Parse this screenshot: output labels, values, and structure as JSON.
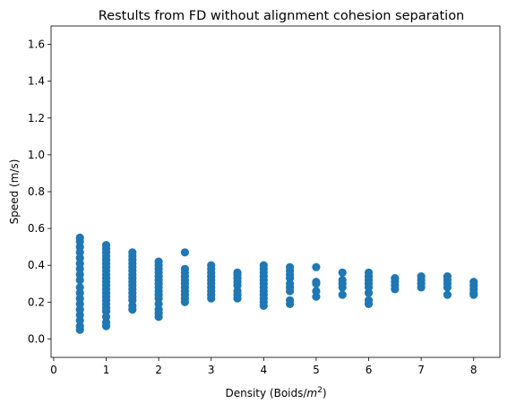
{
  "chart_data": {
    "type": "scatter",
    "title": "Restults from FD without alignment cohesion separation",
    "xlabel": "Density (Boids/m²)",
    "xlabel_main": "Density (Boids/",
    "xlabel_unit": "m",
    "xlabel_exp": "2",
    "xlabel_close": ")",
    "ylabel": "Speed (m/s)",
    "xlim": [
      -0.05,
      8.5
    ],
    "ylim": [
      -0.1,
      1.7
    ],
    "xticks": [
      0,
      1,
      2,
      3,
      4,
      5,
      6,
      7,
      8
    ],
    "yticks": [
      0.0,
      0.2,
      0.4,
      0.6,
      0.8,
      1.0,
      1.2,
      1.4,
      1.6
    ],
    "grid": false,
    "marker_color": "#1f77b4",
    "series": [
      {
        "points": [
          [
            0.5,
            0.05
          ],
          [
            0.5,
            0.07
          ],
          [
            0.5,
            0.1
          ],
          [
            0.5,
            0.13
          ],
          [
            0.5,
            0.16
          ],
          [
            0.5,
            0.19
          ],
          [
            0.5,
            0.22
          ],
          [
            0.5,
            0.25
          ],
          [
            0.5,
            0.28
          ],
          [
            0.5,
            0.32
          ],
          [
            0.5,
            0.35
          ],
          [
            0.5,
            0.38
          ],
          [
            0.5,
            0.41
          ],
          [
            0.5,
            0.44
          ],
          [
            0.5,
            0.47
          ],
          [
            0.5,
            0.5
          ],
          [
            0.5,
            0.53
          ],
          [
            0.5,
            0.55
          ],
          [
            1.0,
            0.07
          ],
          [
            1.0,
            0.09
          ],
          [
            1.0,
            0.12
          ],
          [
            1.0,
            0.15
          ],
          [
            1.0,
            0.17
          ],
          [
            1.0,
            0.19
          ],
          [
            1.0,
            0.21
          ],
          [
            1.0,
            0.23
          ],
          [
            1.0,
            0.25
          ],
          [
            1.0,
            0.27
          ],
          [
            1.0,
            0.29
          ],
          [
            1.0,
            0.31
          ],
          [
            1.0,
            0.33
          ],
          [
            1.0,
            0.35
          ],
          [
            1.0,
            0.37
          ],
          [
            1.0,
            0.39
          ],
          [
            1.0,
            0.41
          ],
          [
            1.0,
            0.43
          ],
          [
            1.0,
            0.45
          ],
          [
            1.0,
            0.47
          ],
          [
            1.0,
            0.49
          ],
          [
            1.0,
            0.51
          ],
          [
            1.5,
            0.16
          ],
          [
            1.5,
            0.18
          ],
          [
            1.5,
            0.21
          ],
          [
            1.5,
            0.23
          ],
          [
            1.5,
            0.25
          ],
          [
            1.5,
            0.27
          ],
          [
            1.5,
            0.29
          ],
          [
            1.5,
            0.31
          ],
          [
            1.5,
            0.33
          ],
          [
            1.5,
            0.35
          ],
          [
            1.5,
            0.37
          ],
          [
            1.5,
            0.39
          ],
          [
            1.5,
            0.41
          ],
          [
            1.5,
            0.43
          ],
          [
            1.5,
            0.45
          ],
          [
            1.5,
            0.47
          ],
          [
            2.0,
            0.12
          ],
          [
            2.0,
            0.14
          ],
          [
            2.0,
            0.16
          ],
          [
            2.0,
            0.19
          ],
          [
            2.0,
            0.22
          ],
          [
            2.0,
            0.24
          ],
          [
            2.0,
            0.26
          ],
          [
            2.0,
            0.28
          ],
          [
            2.0,
            0.3
          ],
          [
            2.0,
            0.32
          ],
          [
            2.0,
            0.34
          ],
          [
            2.0,
            0.36
          ],
          [
            2.0,
            0.38
          ],
          [
            2.0,
            0.4
          ],
          [
            2.0,
            0.42
          ],
          [
            2.5,
            0.2
          ],
          [
            2.5,
            0.22
          ],
          [
            2.5,
            0.24
          ],
          [
            2.5,
            0.26
          ],
          [
            2.5,
            0.28
          ],
          [
            2.5,
            0.3
          ],
          [
            2.5,
            0.32
          ],
          [
            2.5,
            0.34
          ],
          [
            2.5,
            0.36
          ],
          [
            2.5,
            0.38
          ],
          [
            2.5,
            0.47
          ],
          [
            3.0,
            0.22
          ],
          [
            3.0,
            0.24
          ],
          [
            3.0,
            0.26
          ],
          [
            3.0,
            0.28
          ],
          [
            3.0,
            0.3
          ],
          [
            3.0,
            0.32
          ],
          [
            3.0,
            0.34
          ],
          [
            3.0,
            0.36
          ],
          [
            3.0,
            0.38
          ],
          [
            3.0,
            0.4
          ],
          [
            3.5,
            0.22
          ],
          [
            3.5,
            0.24
          ],
          [
            3.5,
            0.26
          ],
          [
            3.5,
            0.29
          ],
          [
            3.5,
            0.31
          ],
          [
            3.5,
            0.33
          ],
          [
            3.5,
            0.35
          ],
          [
            3.5,
            0.36
          ],
          [
            4.0,
            0.18
          ],
          [
            4.0,
            0.2
          ],
          [
            4.0,
            0.22
          ],
          [
            4.0,
            0.24
          ],
          [
            4.0,
            0.26
          ],
          [
            4.0,
            0.28
          ],
          [
            4.0,
            0.3
          ],
          [
            4.0,
            0.32
          ],
          [
            4.0,
            0.34
          ],
          [
            4.0,
            0.36
          ],
          [
            4.0,
            0.38
          ],
          [
            4.0,
            0.4
          ],
          [
            4.5,
            0.19
          ],
          [
            4.5,
            0.21
          ],
          [
            4.5,
            0.26
          ],
          [
            4.5,
            0.28
          ],
          [
            4.5,
            0.3
          ],
          [
            4.5,
            0.33
          ],
          [
            4.5,
            0.35
          ],
          [
            4.5,
            0.37
          ],
          [
            4.5,
            0.39
          ],
          [
            5.0,
            0.23
          ],
          [
            5.0,
            0.26
          ],
          [
            5.0,
            0.3
          ],
          [
            5.0,
            0.31
          ],
          [
            5.0,
            0.39
          ],
          [
            5.5,
            0.24
          ],
          [
            5.5,
            0.28
          ],
          [
            5.5,
            0.3
          ],
          [
            5.5,
            0.32
          ],
          [
            5.5,
            0.36
          ],
          [
            6.0,
            0.19
          ],
          [
            6.0,
            0.21
          ],
          [
            6.0,
            0.25
          ],
          [
            6.0,
            0.28
          ],
          [
            6.0,
            0.3
          ],
          [
            6.0,
            0.32
          ],
          [
            6.0,
            0.34
          ],
          [
            6.0,
            0.36
          ],
          [
            6.5,
            0.27
          ],
          [
            6.5,
            0.29
          ],
          [
            6.5,
            0.31
          ],
          [
            6.5,
            0.33
          ],
          [
            7.0,
            0.28
          ],
          [
            7.0,
            0.3
          ],
          [
            7.0,
            0.32
          ],
          [
            7.0,
            0.34
          ],
          [
            7.5,
            0.24
          ],
          [
            7.5,
            0.28
          ],
          [
            7.5,
            0.3
          ],
          [
            7.5,
            0.32
          ],
          [
            7.5,
            0.34
          ],
          [
            8.0,
            0.24
          ],
          [
            8.0,
            0.25
          ],
          [
            8.0,
            0.27
          ],
          [
            8.0,
            0.29
          ],
          [
            8.0,
            0.31
          ]
        ]
      }
    ]
  }
}
